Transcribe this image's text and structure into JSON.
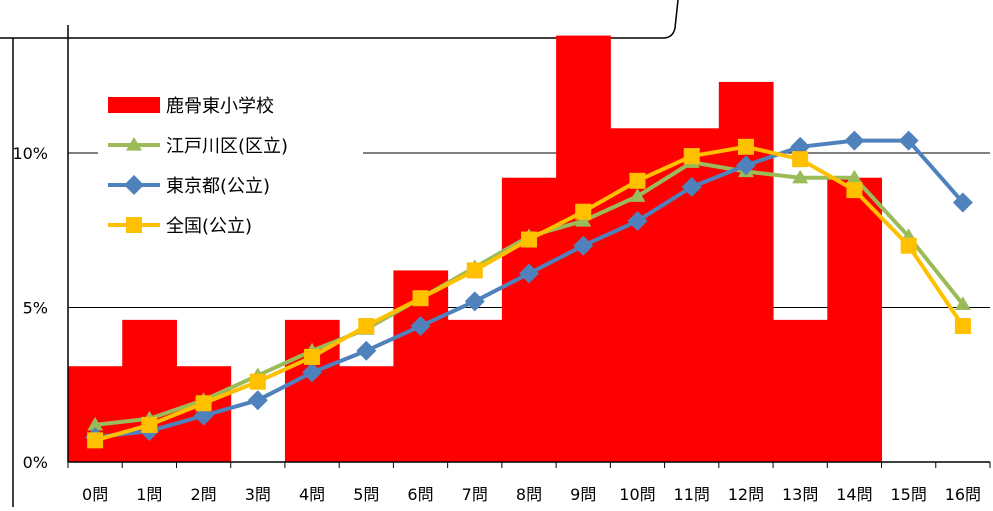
{
  "chart_data": {
    "type": "bar+line",
    "categories": [
      "0問",
      "1問",
      "2問",
      "3問",
      "4問",
      "5問",
      "6問",
      "7問",
      "8問",
      "9問",
      "10問",
      "11問",
      "12問",
      "13問",
      "14問",
      "15問",
      "16問"
    ],
    "y_ticks": [
      {
        "value": 0,
        "label": "0%"
      },
      {
        "value": 5,
        "label": "5%"
      },
      {
        "value": 10,
        "label": "10%"
      }
    ],
    "ylim": [
      0,
      14
    ],
    "grid": true,
    "legend_placement": "top-left",
    "series": [
      {
        "name": "鹿骨東小学校",
        "kind": "bar",
        "color": "#ff0000",
        "values": [
          3.1,
          4.6,
          3.1,
          0,
          4.6,
          3.1,
          6.2,
          4.6,
          9.2,
          13.8,
          10.8,
          10.8,
          12.3,
          4.6,
          9.2,
          0,
          0
        ]
      },
      {
        "name": "江戸川区(区立)",
        "kind": "line",
        "marker": "triangle",
        "color": "#9bbb59",
        "values": [
          1.2,
          1.4,
          2.0,
          2.8,
          3.6,
          4.3,
          5.3,
          6.3,
          7.3,
          7.8,
          8.6,
          9.7,
          9.4,
          9.2,
          9.2,
          7.3,
          5.1
        ]
      },
      {
        "name": "東京都(公立)",
        "kind": "line",
        "marker": "diamond",
        "color": "#4f81bd",
        "values": [
          0.8,
          1.0,
          1.5,
          2.0,
          2.9,
          3.6,
          4.4,
          5.2,
          6.1,
          7.0,
          7.8,
          8.9,
          9.6,
          10.2,
          10.4,
          10.4,
          8.4
        ]
      },
      {
        "name": "全国(公立)",
        "kind": "line",
        "marker": "square",
        "color": "#ffc000",
        "values": [
          0.7,
          1.2,
          1.9,
          2.6,
          3.4,
          4.4,
          5.3,
          6.2,
          7.2,
          8.1,
          9.1,
          9.9,
          10.2,
          9.8,
          8.8,
          7.0,
          4.4
        ]
      }
    ]
  }
}
